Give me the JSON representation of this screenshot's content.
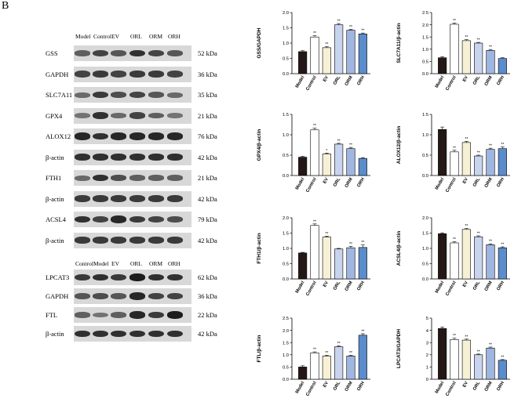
{
  "panel_letter": "B",
  "blot": {
    "header_top": [
      "Model",
      "Control",
      "EV",
      "ORL",
      "ORM",
      "ORH"
    ],
    "header_bottom": [
      "Control",
      "Model",
      "EV",
      "ORL",
      "ORM",
      "ORH"
    ],
    "rows_top": [
      {
        "label": "GSS",
        "kda": "52 kDa"
      },
      {
        "label": "GAPDH",
        "kda": "36 kDa"
      },
      {
        "label": "SLC7A11",
        "kda": "35 kDa"
      },
      {
        "label": "GPX4",
        "kda": "21 kDa"
      },
      {
        "label": "ALOX12",
        "kda": "76 kDa"
      },
      {
        "label": "β-actin",
        "kda": "42 kDa"
      },
      {
        "label": "FTH1",
        "kda": "21 kDa"
      },
      {
        "label": "β-actin",
        "kda": "42 kDa"
      },
      {
        "label": "ACSL4",
        "kda": "79 kDa"
      },
      {
        "label": "β-actin",
        "kda": "42 kDa"
      }
    ],
    "rows_bottom": [
      {
        "label": "LPCAT3",
        "kda": "62 kDa"
      },
      {
        "label": "GAPDH",
        "kda": "36 kDa"
      },
      {
        "label": "FTL",
        "kda": "22 kDa"
      },
      {
        "label": "β-actin",
        "kda": "42 kDa"
      }
    ]
  },
  "colors": [
    "#231815",
    "#ffffff",
    "#f6f1d5",
    "#c8d4ee",
    "#9fb6e2",
    "#5b8ccc"
  ],
  "chart_data": [
    {
      "type": "bar",
      "ylabel": "GSS/GAPDH",
      "categories": [
        "Model",
        "Control",
        "EV",
        "ORL",
        "ORM",
        "ORH"
      ],
      "values": [
        0.72,
        1.2,
        0.85,
        1.6,
        1.42,
        1.3
      ],
      "errors": [
        0.03,
        0.04,
        0.03,
        0.04,
        0.03,
        0.03
      ],
      "ylim": [
        0,
        2.0
      ],
      "yticks": [
        "0.0",
        "0.5",
        "1.0",
        "1.5",
        "2.0"
      ],
      "sig": [
        "",
        "**",
        "**",
        "**",
        "**",
        "**"
      ]
    },
    {
      "type": "bar",
      "ylabel": "SLC7A11/β-actin",
      "categories": [
        "Model",
        "Control",
        "EV",
        "ORL",
        "ORM",
        "ORH"
      ],
      "values": [
        0.65,
        2.02,
        1.35,
        1.25,
        0.95,
        0.62
      ],
      "errors": [
        0.04,
        0.05,
        0.04,
        0.03,
        0.04,
        0.03
      ],
      "ylim": [
        0,
        2.5
      ],
      "yticks": [
        "0.0",
        "0.5",
        "1.0",
        "1.5",
        "2.0",
        "2.5"
      ],
      "sig": [
        "",
        "**",
        "**",
        "**",
        "**",
        ""
      ]
    },
    {
      "type": "bar",
      "ylabel": "GPX4/β-actin",
      "categories": [
        "Model",
        "Control",
        "EV",
        "ORL",
        "ORM",
        "ORH"
      ],
      "values": [
        0.45,
        1.12,
        0.53,
        0.77,
        0.66,
        0.42
      ],
      "errors": [
        0.02,
        0.04,
        0.02,
        0.02,
        0.03,
        0.02
      ],
      "ylim": [
        0,
        1.5
      ],
      "yticks": [
        "0.0",
        "0.5",
        "1.0",
        "1.5"
      ],
      "sig": [
        "",
        "**",
        "*",
        "**",
        "**",
        ""
      ]
    },
    {
      "type": "bar",
      "ylabel": "ALOX12/β-actin",
      "categories": [
        "Model",
        "Control",
        "EV",
        "ORL",
        "ORM",
        "ORH"
      ],
      "values": [
        1.13,
        0.58,
        0.81,
        0.48,
        0.64,
        0.66
      ],
      "errors": [
        0.06,
        0.04,
        0.03,
        0.02,
        0.03,
        0.04
      ],
      "ylim": [
        0,
        1.5
      ],
      "yticks": [
        "0.0",
        "0.5",
        "1.0",
        "1.5"
      ],
      "sig": [
        "",
        "**",
        "**",
        "**",
        "**",
        "**"
      ]
    },
    {
      "type": "bar",
      "ylabel": "FTH1/β-actin",
      "categories": [
        "Model",
        "Control",
        "EV",
        "ORL",
        "ORM",
        "ORH"
      ],
      "values": [
        0.85,
        1.75,
        1.37,
        0.98,
        1.02,
        1.03
      ],
      "errors": [
        0.02,
        0.05,
        0.03,
        0.02,
        0.05,
        0.08
      ],
      "ylim": [
        0.0,
        2.0
      ],
      "yticks": [
        "0.0",
        "0.5",
        "1.0",
        "1.5",
        "2.0"
      ],
      "sig": [
        "",
        "**",
        "**",
        "",
        "**",
        "**"
      ]
    },
    {
      "type": "bar",
      "ylabel": "ACSL4/β-actin",
      "categories": [
        "Model",
        "Control",
        "EV",
        "ORL",
        "ORM",
        "ORH"
      ],
      "values": [
        1.48,
        1.18,
        1.62,
        1.38,
        1.12,
        1.02
      ],
      "errors": [
        0.03,
        0.04,
        0.03,
        0.03,
        0.03,
        0.03
      ],
      "ylim": [
        0,
        2.0
      ],
      "yticks": [
        "0.0",
        "0.5",
        "1.0",
        "1.5",
        "2.0"
      ],
      "sig": [
        "",
        "**",
        "**",
        "**",
        "**",
        "**"
      ]
    },
    {
      "type": "bar",
      "ylabel": "FTL/β-actin",
      "categories": [
        "Model",
        "Control",
        "EV",
        "ORL",
        "ORM",
        "ORH"
      ],
      "values": [
        0.5,
        1.08,
        0.95,
        1.33,
        0.95,
        1.8
      ],
      "errors": [
        0.05,
        0.04,
        0.03,
        0.04,
        0.03,
        0.06
      ],
      "ylim": [
        0,
        2.5
      ],
      "yticks": [
        "0.0",
        "0.5",
        "1.0",
        "1.5",
        "2.0",
        "2.5"
      ],
      "sig": [
        "",
        "**",
        "**",
        "**",
        "**",
        "**"
      ]
    },
    {
      "type": "bar",
      "ylabel": "LPCAT3/GAPDH",
      "categories": [
        "Model",
        "Control",
        "EV",
        "ORL",
        "ORM",
        "ORH"
      ],
      "values": [
        4.15,
        3.25,
        3.2,
        2.0,
        2.55,
        1.55
      ],
      "errors": [
        0.12,
        0.1,
        0.08,
        0.06,
        0.08,
        0.06
      ],
      "ylim": [
        0,
        5
      ],
      "yticks": [
        "0",
        "1",
        "2",
        "3",
        "4",
        "5"
      ],
      "sig": [
        "",
        "**",
        "**",
        "**",
        "**",
        "**"
      ]
    }
  ]
}
